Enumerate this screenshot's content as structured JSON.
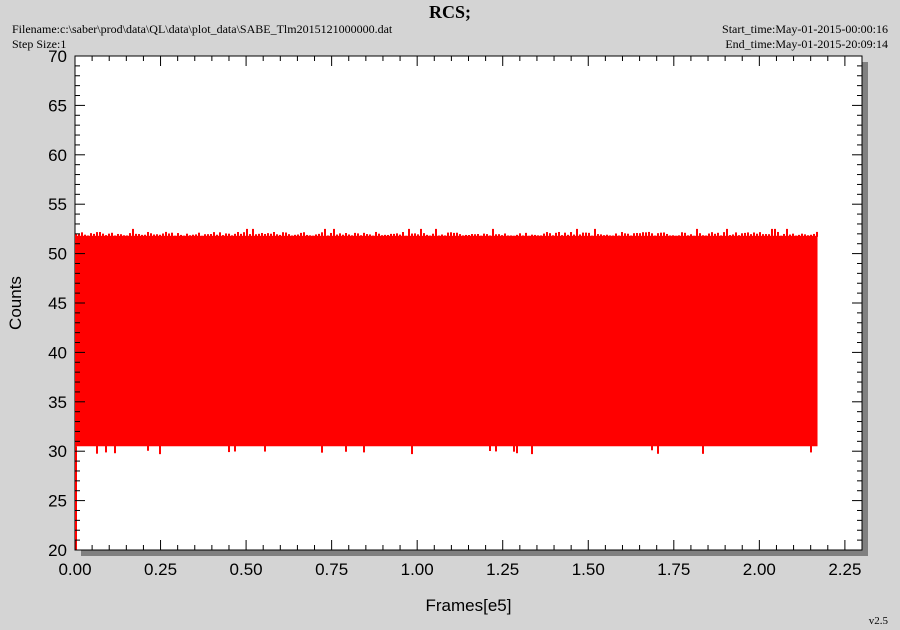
{
  "header": {
    "title": "RCS;",
    "filename": "Filename:c:\\saber\\prod\\data\\QL\\data\\plot_data\\SABE_Tlm2015121000000.dat",
    "step_size": "Step Size:1",
    "start_time": "Start_time:May-01-2015-00:00:16",
    "end_time": "End_time:May-01-2015-20:09:14"
  },
  "version": "v2.5",
  "colors": {
    "background": "#d4d4d4",
    "plot_area": "#ffffff",
    "series": "#ff0000",
    "shadow": "#808080"
  },
  "chart_data": {
    "type": "area",
    "title": "RCS;",
    "xlabel": "Frames[e5]",
    "ylabel": "Counts",
    "xlim": [
      0,
      2.3
    ],
    "ylim": [
      20,
      70
    ],
    "x_ticks": [
      "0.00",
      "0.25",
      "0.50",
      "0.75",
      "1.00",
      "1.25",
      "1.50",
      "1.75",
      "2.00",
      "2.25"
    ],
    "y_ticks": [
      "20",
      "25",
      "30",
      "35",
      "40",
      "45",
      "50",
      "55",
      "60",
      "65",
      "70"
    ],
    "grid": false,
    "series": [
      {
        "values": {
          "x_start": 0.0,
          "x_end": 2.17,
          "typical_min": 30.5,
          "typical_max": 51.8,
          "occasional_max": 52.5,
          "occasional_min": 29.7
        }
      }
    ]
  }
}
